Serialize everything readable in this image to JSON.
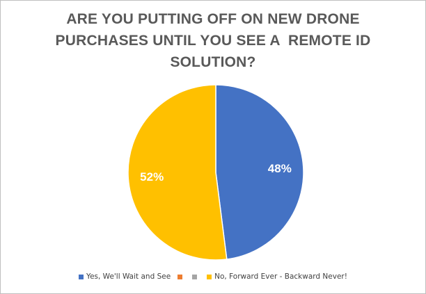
{
  "chart_data": {
    "type": "pie",
    "title_lines": [
      "ARE YOU PUTTING OFF ON NEW DRONE",
      "PURCHASES UNTIL YOU SEE A  REMOTE ID",
      "SOLUTION?"
    ],
    "slices": [
      {
        "name": "Yes, We'll Wait and See",
        "value": 48,
        "label": "48%",
        "color": "#4472C4"
      },
      {
        "name": "",
        "value": 0,
        "label": "",
        "color": "#ED7D31"
      },
      {
        "name": "",
        "value": 0,
        "label": "",
        "color": "#A5A5A5"
      },
      {
        "name": "No, Forward Ever - Backward Never!",
        "value": 52,
        "label": "52%",
        "color": "#FFC000"
      }
    ],
    "legend_position": "bottom"
  }
}
